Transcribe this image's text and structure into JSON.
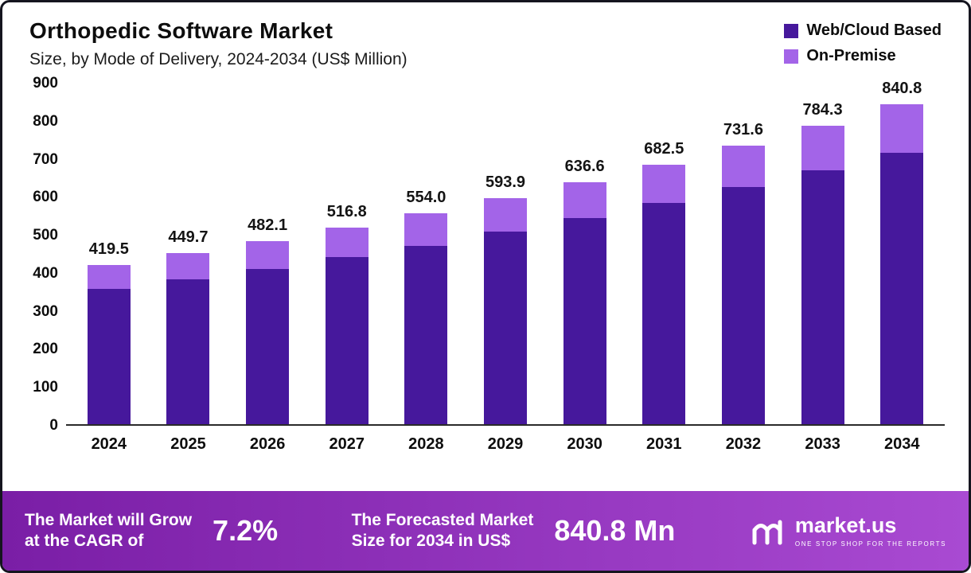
{
  "colors": {
    "web_cloud_based": "#46189c",
    "on_premise": "#a364e8",
    "banner_from": "#7a1ea6",
    "banner_to": "#a94ad2"
  },
  "chart_data": {
    "type": "bar",
    "stacked": true,
    "title": "Orthopedic Software Market",
    "subtitle": "Size, by Mode of Delivery, 2024-2034 (US$ Million)",
    "xlabel": "",
    "ylabel": "US$ Million",
    "ylim": [
      0,
      900
    ],
    "yticks": [
      0,
      100,
      200,
      300,
      400,
      500,
      600,
      700,
      800,
      900
    ],
    "grid": false,
    "legend_position": "top-right",
    "categories": [
      "2024",
      "2025",
      "2026",
      "2027",
      "2028",
      "2029",
      "2030",
      "2031",
      "2032",
      "2033",
      "2034"
    ],
    "series": [
      {
        "name": "Web/Cloud Based",
        "values": [
          355.0,
          380.0,
          408.0,
          439.0,
          469.0,
          506.0,
          543.0,
          582.0,
          623.0,
          668.0,
          714.0
        ]
      },
      {
        "name": "On-Premise",
        "values": [
          64.5,
          69.7,
          74.1,
          77.8,
          85.0,
          87.9,
          93.6,
          100.5,
          108.6,
          116.3,
          126.8
        ]
      }
    ],
    "totals": [
      419.5,
      449.7,
      482.1,
      516.8,
      554.0,
      593.9,
      636.6,
      682.5,
      731.6,
      784.3,
      840.8
    ],
    "total_labels": [
      "419.5",
      "449.7",
      "482.1",
      "516.8",
      "554.0",
      "593.9",
      "636.6",
      "682.5",
      "731.6",
      "784.3",
      "840.8"
    ]
  },
  "banner": {
    "cagr_text": "The Market will Grow\nat the CAGR of",
    "cagr_value": "7.2%",
    "forecast_text": "The Forecasted Market\nSize for 2034 in US$",
    "forecast_value": "840.8 Mn",
    "logo_name": "market.us",
    "logo_tagline": "ONE STOP SHOP FOR THE REPORTS"
  }
}
